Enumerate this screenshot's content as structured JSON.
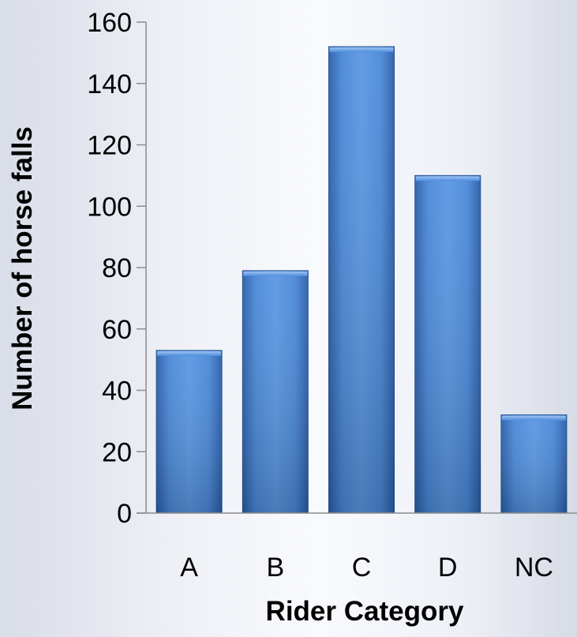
{
  "chart_data": {
    "type": "bar",
    "title": "",
    "xlabel": "Rider Category",
    "ylabel": "Number of horse falls",
    "categories": [
      "A",
      "B",
      "C",
      "D",
      "NC"
    ],
    "values": [
      53,
      79,
      152,
      110,
      32
    ],
    "ylim": [
      0,
      160
    ],
    "yticks": [
      "0",
      "20",
      "40",
      "60",
      "80",
      "100",
      "120",
      "140",
      "160"
    ],
    "grid": false,
    "legend": "none",
    "colors": {
      "bar_light": "#5b97e2",
      "bar_mid": "#3b78c9",
      "bar_dark": "#2a5ea8",
      "bar_edge": "#1f4f8f",
      "axis": "#8c8c8c",
      "text": "#000000"
    }
  }
}
